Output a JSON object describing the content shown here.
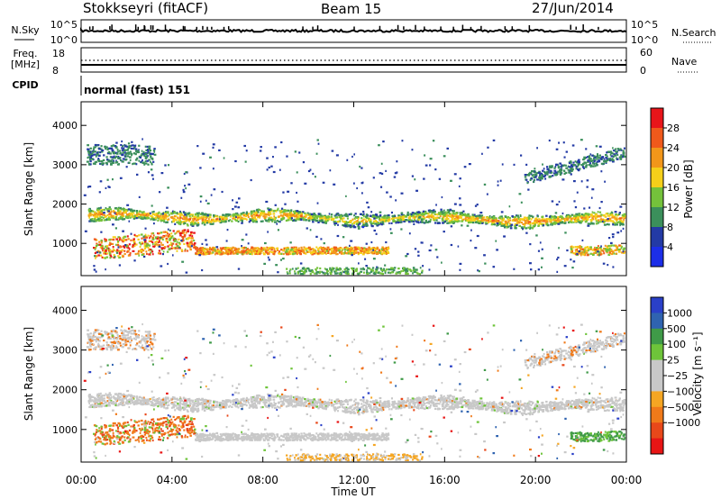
{
  "header": {
    "title": "Stokkseyri (fitACF)",
    "beam": "Beam 15",
    "date": "27/Jun/2014"
  },
  "info_panels": {
    "nsky_label": "N.Sky",
    "nsky_ticks": [
      "10^5",
      "10^0"
    ],
    "nsearch_label": "N.Search",
    "nsearch_ticks": [
      "10^5",
      "10^0"
    ],
    "freq_label": "Freq.",
    "freq_unit": "[MHz]",
    "freq_ticks": [
      "18",
      "8"
    ],
    "nave_label": "Nave",
    "nave_ticks": [
      "60",
      "0"
    ],
    "cpid_label": "CPID",
    "cpid_text": "normal (fast) 151"
  },
  "chart_data": [
    {
      "type": "heatmap",
      "panel": "power",
      "ylabel": "Slant Range [km]",
      "yticks": [
        1000,
        2000,
        3000,
        4000
      ],
      "ylim": [
        180,
        4600
      ],
      "xticks": [
        "00:00",
        "04:00",
        "08:00",
        "12:00",
        "16:00",
        "20:00",
        "00:00"
      ],
      "xlim_hours": [
        0,
        24
      ],
      "colorbar": {
        "label": "Power [dB]",
        "ticks": [
          "28",
          "24",
          "20",
          "16",
          "12",
          "8",
          "4"
        ],
        "colors": [
          "#e8151a",
          "#f0591b",
          "#f2961a",
          "#f5cf1a",
          "#74c23b",
          "#3b8f5b",
          "#233aa5",
          "#1c2ee8"
        ]
      },
      "scatter_bands": [
        {
          "name": "main band",
          "start_range_km": 1650,
          "end_range_km": 1550,
          "dominant_power_dB": 14
        },
        {
          "name": "lower band",
          "start_range_km": 800,
          "end_range_km": 750,
          "dominant_power_dB": 24
        }
      ]
    },
    {
      "type": "heatmap",
      "panel": "velocity",
      "ylabel": "Slant Range [km]",
      "yticks": [
        1000,
        2000,
        3000,
        4000
      ],
      "ylim": [
        180,
        4600
      ],
      "xticks": [
        "00:00",
        "04:00",
        "08:00",
        "12:00",
        "16:00",
        "20:00",
        "00:00"
      ],
      "xlabel": "Time UT",
      "colorbar": {
        "label": "Velocity [m s⁻¹]",
        "ticks": [
          "1000",
          "500",
          "100",
          "25",
          "−25",
          "−100",
          "−500",
          "−1000"
        ],
        "colors": [
          "#2a40c8",
          "#2f63b0",
          "#3f9a48",
          "#6ec43a",
          "#c8c8c8",
          "#c8c8c8",
          "#f5a623",
          "#f07a1a",
          "#e8481a",
          "#e81515"
        ]
      }
    }
  ]
}
